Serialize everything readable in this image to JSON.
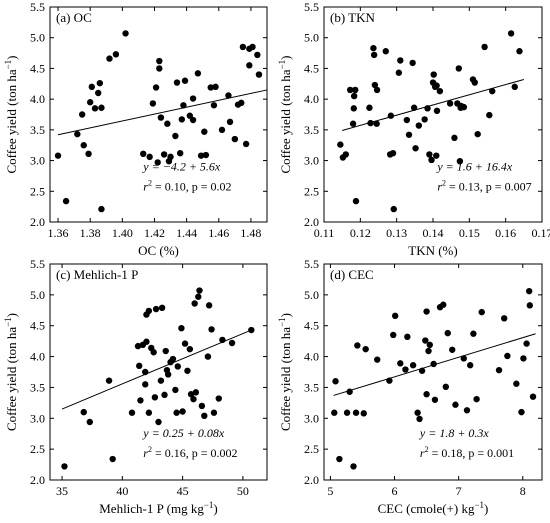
{
  "chart_data": [
    {
      "type": "scatter",
      "panel_label": "(a) OC",
      "xlabel": "OC (%)",
      "ylabel_main": "Coffee yield (ton ha",
      "ylabel_sup": "−1",
      "ylabel_close": ")",
      "xlim": [
        1.355,
        1.49
      ],
      "ylim": [
        2.0,
        5.5
      ],
      "xticks": [
        1.36,
        1.38,
        1.4,
        1.42,
        1.44,
        1.46,
        1.48
      ],
      "xtick_labels": [
        "1.36",
        "1.38",
        "1.40",
        "1.42",
        "1.44",
        "1.46",
        "1.48"
      ],
      "yticks": [
        2.0,
        2.5,
        3.0,
        3.5,
        4.0,
        4.5,
        5.0,
        5.5
      ],
      "ytick_labels": [
        "2.0",
        "2.5",
        "3.0",
        "3.5",
        "4.0",
        "4.5",
        "5.0",
        "5.5"
      ],
      "trend": {
        "x": [
          1.36,
          1.49
        ],
        "y": [
          3.42,
          4.15
        ]
      },
      "equation": {
        "line1": "y = −4.2 + 5.6x",
        "line2_pre": "r",
        "line2_sup": "2",
        "line2_post": " = 0.10, p = 0.02"
      },
      "points": [
        [
          1.36,
          3.08
        ],
        [
          1.365,
          2.34
        ],
        [
          1.372,
          3.43
        ],
        [
          1.375,
          3.75
        ],
        [
          1.376,
          3.25
        ],
        [
          1.379,
          3.11
        ],
        [
          1.38,
          3.95
        ],
        [
          1.381,
          4.2
        ],
        [
          1.383,
          3.85
        ],
        [
          1.385,
          4.1
        ],
        [
          1.386,
          4.26
        ],
        [
          1.387,
          3.86
        ],
        [
          1.387,
          2.21
        ],
        [
          1.392,
          4.66
        ],
        [
          1.396,
          4.73
        ],
        [
          1.402,
          5.07
        ],
        [
          1.413,
          3.11
        ],
        [
          1.417,
          3.06
        ],
        [
          1.419,
          3.93
        ],
        [
          1.421,
          4.19
        ],
        [
          1.422,
          2.97
        ],
        [
          1.423,
          4.62
        ],
        [
          1.423,
          4.5
        ],
        [
          1.424,
          3.7
        ],
        [
          1.426,
          3.1
        ],
        [
          1.428,
          3.6
        ],
        [
          1.429,
          2.99
        ],
        [
          1.43,
          3.06
        ],
        [
          1.433,
          3.4
        ],
        [
          1.434,
          4.27
        ],
        [
          1.436,
          3.12
        ],
        [
          1.437,
          3.67
        ],
        [
          1.438,
          3.9
        ],
        [
          1.439,
          4.3
        ],
        [
          1.442,
          3.73
        ],
        [
          1.444,
          4.01
        ],
        [
          1.444,
          3.66
        ],
        [
          1.447,
          4.42
        ],
        [
          1.449,
          3.08
        ],
        [
          1.451,
          3.47
        ],
        [
          1.452,
          3.09
        ],
        [
          1.455,
          4.19
        ],
        [
          1.457,
          3.9
        ],
        [
          1.458,
          4.2
        ],
        [
          1.462,
          3.5
        ],
        [
          1.466,
          4.06
        ],
        [
          1.467,
          3.63
        ],
        [
          1.47,
          3.35
        ],
        [
          1.472,
          3.91
        ],
        [
          1.474,
          3.94
        ],
        [
          1.475,
          4.85
        ],
        [
          1.477,
          3.27
        ],
        [
          1.479,
          4.82
        ],
        [
          1.479,
          4.55
        ],
        [
          1.481,
          4.85
        ],
        [
          1.484,
          4.72
        ],
        [
          1.485,
          4.4
        ]
      ]
    },
    {
      "type": "scatter",
      "panel_label": "(b) TKN",
      "xlabel": "TKN (%)",
      "ylabel_main": "Coffee yield (ton ha",
      "ylabel_sup": "−1",
      "ylabel_close": ")",
      "xlim": [
        0.11,
        0.17
      ],
      "ylim": [
        2.0,
        5.5
      ],
      "xticks": [
        0.11,
        0.12,
        0.13,
        0.14,
        0.15,
        0.16,
        0.17
      ],
      "xtick_labels": [
        "0.11",
        "0.12",
        "0.13",
        "0.14",
        "0.15",
        "0.16",
        "0.17"
      ],
      "yticks": [
        2.0,
        2.5,
        3.0,
        3.5,
        4.0,
        4.5,
        5.0,
        5.5
      ],
      "ytick_labels": [
        "2.0",
        "2.5",
        "3.0",
        "3.5",
        "4.0",
        "4.5",
        "5.0",
        "5.5"
      ],
      "trend": {
        "x": [
          0.115,
          0.165
        ],
        "y": [
          3.49,
          4.32
        ]
      },
      "equation": {
        "line1": "y = 1.6 + 16.4x",
        "line2_pre": "r",
        "line2_sup": "2",
        "line2_post": " = 0.13, p = 0.007"
      },
      "points": [
        [
          0.1145,
          3.26
        ],
        [
          0.1152,
          3.05
        ],
        [
          0.116,
          3.1
        ],
        [
          0.1172,
          4.15
        ],
        [
          0.118,
          3.6
        ],
        [
          0.1182,
          3.85
        ],
        [
          0.1183,
          4.05
        ],
        [
          0.1186,
          4.15
        ],
        [
          0.1188,
          2.34
        ],
        [
          0.1225,
          3.86
        ],
        [
          0.1228,
          3.61
        ],
        [
          0.1236,
          4.83
        ],
        [
          0.1238,
          4.72
        ],
        [
          0.124,
          4.23
        ],
        [
          0.1245,
          3.6
        ],
        [
          0.1246,
          4.15
        ],
        [
          0.127,
          4.78
        ],
        [
          0.1282,
          3.1
        ],
        [
          0.1284,
          3.73
        ],
        [
          0.129,
          3.12
        ],
        [
          0.1292,
          2.21
        ],
        [
          0.1306,
          4.43
        ],
        [
          0.131,
          4.63
        ],
        [
          0.1328,
          3.66
        ],
        [
          0.1334,
          3.42
        ],
        [
          0.1344,
          4.59
        ],
        [
          0.1348,
          3.86
        ],
        [
          0.1352,
          3.2
        ],
        [
          0.1361,
          3.57
        ],
        [
          0.1377,
          3.67
        ],
        [
          0.1385,
          3.85
        ],
        [
          0.139,
          3.1
        ],
        [
          0.1396,
          3.01
        ],
        [
          0.14,
          4.27
        ],
        [
          0.1402,
          4.4
        ],
        [
          0.1406,
          4.2
        ],
        [
          0.1409,
          3.08
        ],
        [
          0.141,
          4.22
        ],
        [
          0.1411,
          3.81
        ],
        [
          0.1419,
          4.13
        ],
        [
          0.1447,
          3.93
        ],
        [
          0.1459,
          3.37
        ],
        [
          0.1467,
          3.93
        ],
        [
          0.1471,
          4.5
        ],
        [
          0.1474,
          2.99
        ],
        [
          0.1476,
          3.86
        ],
        [
          0.1477,
          3.89
        ],
        [
          0.1485,
          3.87
        ],
        [
          0.151,
          4.32
        ],
        [
          0.1515,
          4.27
        ],
        [
          0.1523,
          3.43
        ],
        [
          0.1542,
          4.85
        ],
        [
          0.1555,
          3.74
        ],
        [
          0.1563,
          4.13
        ],
        [
          0.1615,
          5.07
        ],
        [
          0.1625,
          4.2
        ],
        [
          0.1638,
          4.78
        ]
      ]
    },
    {
      "type": "scatter",
      "panel_label": "(c) Mehlich-1 P",
      "xlabel_main": "Mehlich-1 P (mg kg",
      "xlabel_sup": "−1",
      "xlabel_close": ")",
      "ylabel_main": "Coffee yield (ton ha",
      "ylabel_sup": "−1",
      "ylabel_close": ")",
      "xlim": [
        34,
        52
      ],
      "ylim": [
        2.0,
        5.5
      ],
      "xticks": [
        35,
        40,
        45,
        50
      ],
      "xtick_labels": [
        "35",
        "40",
        "45",
        "50"
      ],
      "yticks": [
        2.0,
        2.5,
        3.0,
        3.5,
        4.0,
        4.5,
        5.0,
        5.5
      ],
      "ytick_labels": [
        "2.0",
        "2.5",
        "3.0",
        "3.5",
        "4.0",
        "4.5",
        "5.0",
        "5.5"
      ],
      "trend": {
        "x": [
          35,
          50.7
        ],
        "y": [
          3.15,
          4.43
        ]
      },
      "equation": {
        "line1": "y = 0.25 + 0.08x",
        "line2_pre": "r",
        "line2_sup": "2",
        "line2_post": " = 0.16, p = 0.002"
      },
      "points": [
        [
          35.2,
          2.22
        ],
        [
          36.8,
          3.1
        ],
        [
          37.3,
          2.94
        ],
        [
          38.9,
          3.61
        ],
        [
          39.2,
          2.34
        ],
        [
          40.8,
          3.09
        ],
        [
          41.3,
          4.17
        ],
        [
          41.4,
          3.85
        ],
        [
          41.5,
          3.29
        ],
        [
          41.7,
          4.19
        ],
        [
          41.9,
          3.75
        ],
        [
          41.9,
          3.55
        ],
        [
          42.0,
          4.24
        ],
        [
          42.0,
          4.68
        ],
        [
          42.2,
          4.74
        ],
        [
          42.2,
          3.09
        ],
        [
          42.4,
          4.14
        ],
        [
          42.6,
          4.07
        ],
        [
          42.7,
          3.34
        ],
        [
          42.8,
          4.77
        ],
        [
          43.0,
          2.94
        ],
        [
          43.2,
          3.61
        ],
        [
          43.3,
          4.79
        ],
        [
          43.5,
          3.38
        ],
        [
          43.6,
          4.09
        ],
        [
          43.7,
          3.78
        ],
        [
          43.8,
          3.71
        ],
        [
          44.0,
          3.91
        ],
        [
          44.2,
          3.96
        ],
        [
          44.4,
          3.46
        ],
        [
          44.5,
          3.09
        ],
        [
          44.6,
          3.84
        ],
        [
          44.9,
          4.46
        ],
        [
          45.0,
          3.11
        ],
        [
          45.2,
          4.21
        ],
        [
          45.4,
          3.77
        ],
        [
          45.6,
          4.12
        ],
        [
          45.7,
          3.39
        ],
        [
          45.9,
          3.31
        ],
        [
          46.0,
          4.86
        ],
        [
          46.1,
          3.42
        ],
        [
          46.3,
          4.97
        ],
        [
          46.4,
          5.07
        ],
        [
          46.6,
          3.2
        ],
        [
          46.8,
          3.04
        ],
        [
          47.1,
          4.0
        ],
        [
          47.2,
          4.83
        ],
        [
          47.4,
          4.44
        ],
        [
          47.6,
          3.09
        ],
        [
          48.0,
          3.32
        ],
        [
          48.3,
          4.27
        ],
        [
          49.1,
          4.22
        ],
        [
          50.7,
          4.43
        ]
      ]
    },
    {
      "type": "scatter",
      "panel_label": "(d) CEC",
      "xlabel_main": "CEC (cmole(+) kg",
      "xlabel_sup": "−1",
      "xlabel_close": ")",
      "ylabel_main": "Coffee yield (ton ha",
      "ylabel_sup": "−1",
      "ylabel_close": ")",
      "xlim": [
        4.9,
        8.3
      ],
      "ylim": [
        2.0,
        5.5
      ],
      "xticks": [
        5,
        6,
        7,
        8
      ],
      "xtick_labels": [
        "5",
        "6",
        "7",
        "8"
      ],
      "yticks": [
        2.0,
        2.5,
        3.0,
        3.5,
        4.0,
        4.5,
        5.0,
        5.5
      ],
      "ytick_labels": [
        "2.0",
        "2.5",
        "3.0",
        "3.5",
        "4.0",
        "4.5",
        "5.0",
        "5.5"
      ],
      "trend": {
        "x": [
          5.05,
          8.2
        ],
        "y": [
          3.37,
          4.37
        ]
      },
      "equation": {
        "line1": "y = 1.8 + 0.3x",
        "line2_pre": "r",
        "line2_sup": "2",
        "line2_post": " = 0.18, p = 0.001"
      },
      "points": [
        [
          5.06,
          3.09
        ],
        [
          5.08,
          3.6
        ],
        [
          5.14,
          2.34
        ],
        [
          5.26,
          3.09
        ],
        [
          5.3,
          3.43
        ],
        [
          5.36,
          2.22
        ],
        [
          5.4,
          3.09
        ],
        [
          5.42,
          4.18
        ],
        [
          5.52,
          3.08
        ],
        [
          5.55,
          4.12
        ],
        [
          5.73,
          3.95
        ],
        [
          5.92,
          3.61
        ],
        [
          5.98,
          4.35
        ],
        [
          6.01,
          4.66
        ],
        [
          6.09,
          3.89
        ],
        [
          6.17,
          3.79
        ],
        [
          6.2,
          4.32
        ],
        [
          6.29,
          3.86
        ],
        [
          6.36,
          3.09
        ],
        [
          6.39,
          2.99
        ],
        [
          6.43,
          3.77
        ],
        [
          6.48,
          4.26
        ],
        [
          6.5,
          3.39
        ],
        [
          6.5,
          4.73
        ],
        [
          6.53,
          4.09
        ],
        [
          6.55,
          4.19
        ],
        [
          6.61,
          3.88
        ],
        [
          6.63,
          3.3
        ],
        [
          6.71,
          4.8
        ],
        [
          6.76,
          4.84
        ],
        [
          6.8,
          3.51
        ],
        [
          6.83,
          4.38
        ],
        [
          6.9,
          4.11
        ],
        [
          6.95,
          3.22
        ],
        [
          7.08,
          3.97
        ],
        [
          7.13,
          3.13
        ],
        [
          7.18,
          3.86
        ],
        [
          7.23,
          4.37
        ],
        [
          7.28,
          3.31
        ],
        [
          7.36,
          4.72
        ],
        [
          7.63,
          3.78
        ],
        [
          7.71,
          4.62
        ],
        [
          7.76,
          4.01
        ],
        [
          7.9,
          3.56
        ],
        [
          8.01,
          3.97
        ],
        [
          8.06,
          4.21
        ],
        [
          8.1,
          5.06
        ],
        [
          8.11,
          4.83
        ],
        [
          8.16,
          3.35
        ],
        [
          7.98,
          3.1
        ]
      ]
    }
  ]
}
